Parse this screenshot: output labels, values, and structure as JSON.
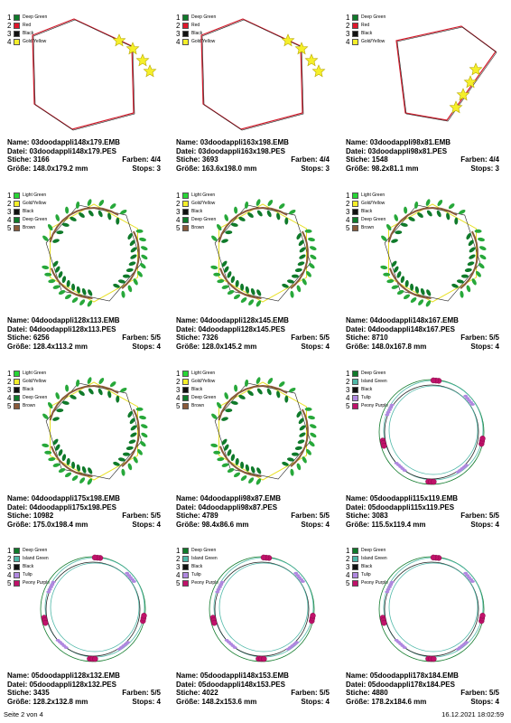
{
  "designs": [
    {
      "name": "03doodappli148x179.EMB",
      "file": "03doodappli148x179.PES",
      "stitches": "3166",
      "colors": "4/4",
      "size": "148.0x179.2 mm",
      "stops": "3",
      "shape": "hex",
      "deco": "stars",
      "legend": [
        {
          "num": "1",
          "name": "Deep Green",
          "color": "#0f7a2a"
        },
        {
          "num": "2",
          "name": "Red",
          "color": "#e0162b"
        },
        {
          "num": "3",
          "name": "Black",
          "color": "#111111"
        },
        {
          "num": "4",
          "name": "Gold/Yellow",
          "color": "#f5ef2a"
        }
      ]
    },
    {
      "name": "03doodappli163x198.EMB",
      "file": "03doodappli163x198.PES",
      "stitches": "3693",
      "colors": "4/4",
      "size": "163.6x198.0 mm",
      "stops": "3",
      "shape": "hex",
      "deco": "stars",
      "legend": [
        {
          "num": "1",
          "name": "Deep Green",
          "color": "#0f7a2a"
        },
        {
          "num": "2",
          "name": "Red",
          "color": "#e0162b"
        },
        {
          "num": "3",
          "name": "Black",
          "color": "#111111"
        },
        {
          "num": "4",
          "name": "Gold/Yellow",
          "color": "#f5ef2a"
        }
      ]
    },
    {
      "name": "03doodappli98x81.EMB",
      "file": "03doodappli98x81.PES",
      "stitches": "1548",
      "colors": "4/4",
      "size": "98.2x81.1 mm",
      "stops": "3",
      "shape": "pent",
      "deco": "stars",
      "legend": [
        {
          "num": "1",
          "name": "Deep Green",
          "color": "#0f7a2a"
        },
        {
          "num": "2",
          "name": "Red",
          "color": "#e0162b"
        },
        {
          "num": "3",
          "name": "Black",
          "color": "#111111"
        },
        {
          "num": "4",
          "name": "Gold/Yellow",
          "color": "#f5ef2a"
        }
      ]
    },
    {
      "name": "04doodappli128x113.EMB",
      "file": "04doodappli128x113.PES",
      "stitches": "6256",
      "colors": "5/5",
      "size": "128.4x113.2 mm",
      "stops": "4",
      "shape": "wreath",
      "deco": "leaves",
      "legend": [
        {
          "num": "1",
          "name": "Light Green",
          "color": "#27d635"
        },
        {
          "num": "2",
          "name": "Gold/Yellow",
          "color": "#f5ef2a"
        },
        {
          "num": "3",
          "name": "Black",
          "color": "#111111"
        },
        {
          "num": "4",
          "name": "Deep Green",
          "color": "#0f7a2a"
        },
        {
          "num": "5",
          "name": "Brown",
          "color": "#8a5a3a"
        }
      ]
    },
    {
      "name": "04doodappli128x145.EMB",
      "file": "04doodappli128x145.PES",
      "stitches": "7326",
      "colors": "5/5",
      "size": "128.0x145.2 mm",
      "stops": "4",
      "shape": "wreath",
      "deco": "leaves",
      "legend": [
        {
          "num": "1",
          "name": "Light Green",
          "color": "#27d635"
        },
        {
          "num": "2",
          "name": "Gold/Yellow",
          "color": "#f5ef2a"
        },
        {
          "num": "3",
          "name": "Black",
          "color": "#111111"
        },
        {
          "num": "4",
          "name": "Deep Green",
          "color": "#0f7a2a"
        },
        {
          "num": "5",
          "name": "Brown",
          "color": "#8a5a3a"
        }
      ]
    },
    {
      "name": "04doodappli148x167.EMB",
      "file": "04doodappli148x167.PES",
      "stitches": "8710",
      "colors": "5/5",
      "size": "148.0x167.8 mm",
      "stops": "4",
      "shape": "wreath",
      "deco": "leaves",
      "legend": [
        {
          "num": "1",
          "name": "Light Green",
          "color": "#27d635"
        },
        {
          "num": "2",
          "name": "Gold/Yellow",
          "color": "#f5ef2a"
        },
        {
          "num": "3",
          "name": "Black",
          "color": "#111111"
        },
        {
          "num": "4",
          "name": "Deep Green",
          "color": "#0f7a2a"
        },
        {
          "num": "5",
          "name": "Brown",
          "color": "#8a5a3a"
        }
      ]
    },
    {
      "name": "04doodappli175x198.EMB",
      "file": "04doodappli175x198.PES",
      "stitches": "10982",
      "colors": "5/5",
      "size": "175.0x198.4 mm",
      "stops": "4",
      "shape": "wreath",
      "deco": "leaves",
      "legend": [
        {
          "num": "1",
          "name": "Light Green",
          "color": "#27d635"
        },
        {
          "num": "2",
          "name": "Gold/Yellow",
          "color": "#f5ef2a"
        },
        {
          "num": "3",
          "name": "Black",
          "color": "#111111"
        },
        {
          "num": "4",
          "name": "Deep Green",
          "color": "#0f7a2a"
        },
        {
          "num": "5",
          "name": "Brown",
          "color": "#8a5a3a"
        }
      ]
    },
    {
      "name": "04doodappli98x87.EMB",
      "file": "04doodappli98x87.PES",
      "stitches": "4789",
      "colors": "5/5",
      "size": "98.4x86.6 mm",
      "stops": "4",
      "shape": "wreath",
      "deco": "leaves",
      "legend": [
        {
          "num": "1",
          "name": "Light Green",
          "color": "#27d635"
        },
        {
          "num": "2",
          "name": "Gold/Yellow",
          "color": "#f5ef2a"
        },
        {
          "num": "3",
          "name": "Black",
          "color": "#111111"
        },
        {
          "num": "4",
          "name": "Deep Green",
          "color": "#0f7a2a"
        },
        {
          "num": "5",
          "name": "Brown",
          "color": "#8a5a3a"
        }
      ]
    },
    {
      "name": "05doodappli115x119.EMB",
      "file": "05doodappli115x119.PES",
      "stitches": "3083",
      "colors": "5/5",
      "size": "115.5x119.4 mm",
      "stops": "4",
      "shape": "ring",
      "deco": "flowers",
      "legend": [
        {
          "num": "1",
          "name": "Deep Green",
          "color": "#0f7a2a"
        },
        {
          "num": "2",
          "name": "Island Green",
          "color": "#4fb8a8"
        },
        {
          "num": "3",
          "name": "Black",
          "color": "#111111"
        },
        {
          "num": "4",
          "name": "Tulip",
          "color": "#b088e0"
        },
        {
          "num": "5",
          "name": "Peony Purple",
          "color": "#c0126a"
        }
      ]
    },
    {
      "name": "05doodappli128x132.EMB",
      "file": "05doodappli128x132.PES",
      "stitches": "3435",
      "colors": "5/5",
      "size": "128.2x132.8 mm",
      "stops": "4",
      "shape": "ring",
      "deco": "flowers",
      "legend": [
        {
          "num": "1",
          "name": "Deep Green",
          "color": "#0f7a2a"
        },
        {
          "num": "2",
          "name": "Island Green",
          "color": "#4fb8a8"
        },
        {
          "num": "3",
          "name": "Black",
          "color": "#111111"
        },
        {
          "num": "4",
          "name": "Tulip",
          "color": "#b088e0"
        },
        {
          "num": "5",
          "name": "Peony Purple",
          "color": "#c0126a"
        }
      ]
    },
    {
      "name": "05doodappli148x153.EMB",
      "file": "05doodappli148x153.PES",
      "stitches": "4022",
      "colors": "5/5",
      "size": "148.2x153.6 mm",
      "stops": "4",
      "shape": "ring",
      "deco": "flowers",
      "legend": [
        {
          "num": "1",
          "name": "Deep Green",
          "color": "#0f7a2a"
        },
        {
          "num": "2",
          "name": "Island Green",
          "color": "#4fb8a8"
        },
        {
          "num": "3",
          "name": "Black",
          "color": "#111111"
        },
        {
          "num": "4",
          "name": "Tulip",
          "color": "#b088e0"
        },
        {
          "num": "5",
          "name": "Peony Purple",
          "color": "#c0126a"
        }
      ]
    },
    {
      "name": "05doodappli178x184.EMB",
      "file": "05doodappli178x184.PES",
      "stitches": "4880",
      "colors": "5/5",
      "size": "178.2x184.6 mm",
      "stops": "4",
      "shape": "ring",
      "deco": "flowers",
      "legend": [
        {
          "num": "1",
          "name": "Deep Green",
          "color": "#0f7a2a"
        },
        {
          "num": "2",
          "name": "Island Green",
          "color": "#4fb8a8"
        },
        {
          "num": "3",
          "name": "Black",
          "color": "#111111"
        },
        {
          "num": "4",
          "name": "Tulip",
          "color": "#b088e0"
        },
        {
          "num": "5",
          "name": "Peony Purple",
          "color": "#c0126a"
        }
      ]
    }
  ],
  "labels": {
    "name": "Name:",
    "file": "Datei:",
    "stitches": "Stiche:",
    "colors": "Farben:",
    "size": "Größe:",
    "stops": "Stops:"
  },
  "footer": {
    "page": "Seite 2 von 4",
    "timestamp": "16.12.2021 18:02:59"
  }
}
